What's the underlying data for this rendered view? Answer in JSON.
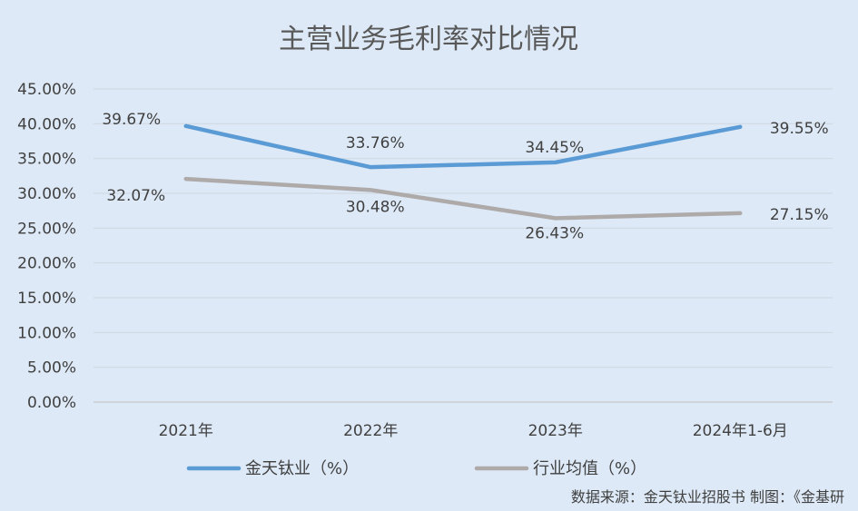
{
  "chart_data": {
    "type": "line",
    "title": "主营业务毛利率对比情况",
    "categories": [
      "2021年",
      "2022年",
      "2023年",
      "2024年1-6月"
    ],
    "ylim": [
      0,
      45
    ],
    "yticks": [
      "0.00%",
      "5.00%",
      "10.00%",
      "15.00%",
      "20.00%",
      "25.00%",
      "30.00%",
      "35.00%",
      "40.00%",
      "45.00%"
    ],
    "grid": true,
    "legend_position": "bottom",
    "series": [
      {
        "name": "金天钛业（%）",
        "color": "#5b9bd5",
        "values": [
          39.67,
          33.76,
          34.45,
          39.55
        ],
        "labels": [
          "39.67%",
          "33.76%",
          "34.45%",
          "39.55%"
        ]
      },
      {
        "name": "行业均值（%）",
        "color": "#aeaaaa",
        "values": [
          32.07,
          30.48,
          26.43,
          27.15
        ],
        "labels": [
          "32.07%",
          "30.48%",
          "26.43%",
          "27.15%"
        ]
      }
    ]
  },
  "source_note": "数据来源：金天钛业招股书   制图：《金基研"
}
